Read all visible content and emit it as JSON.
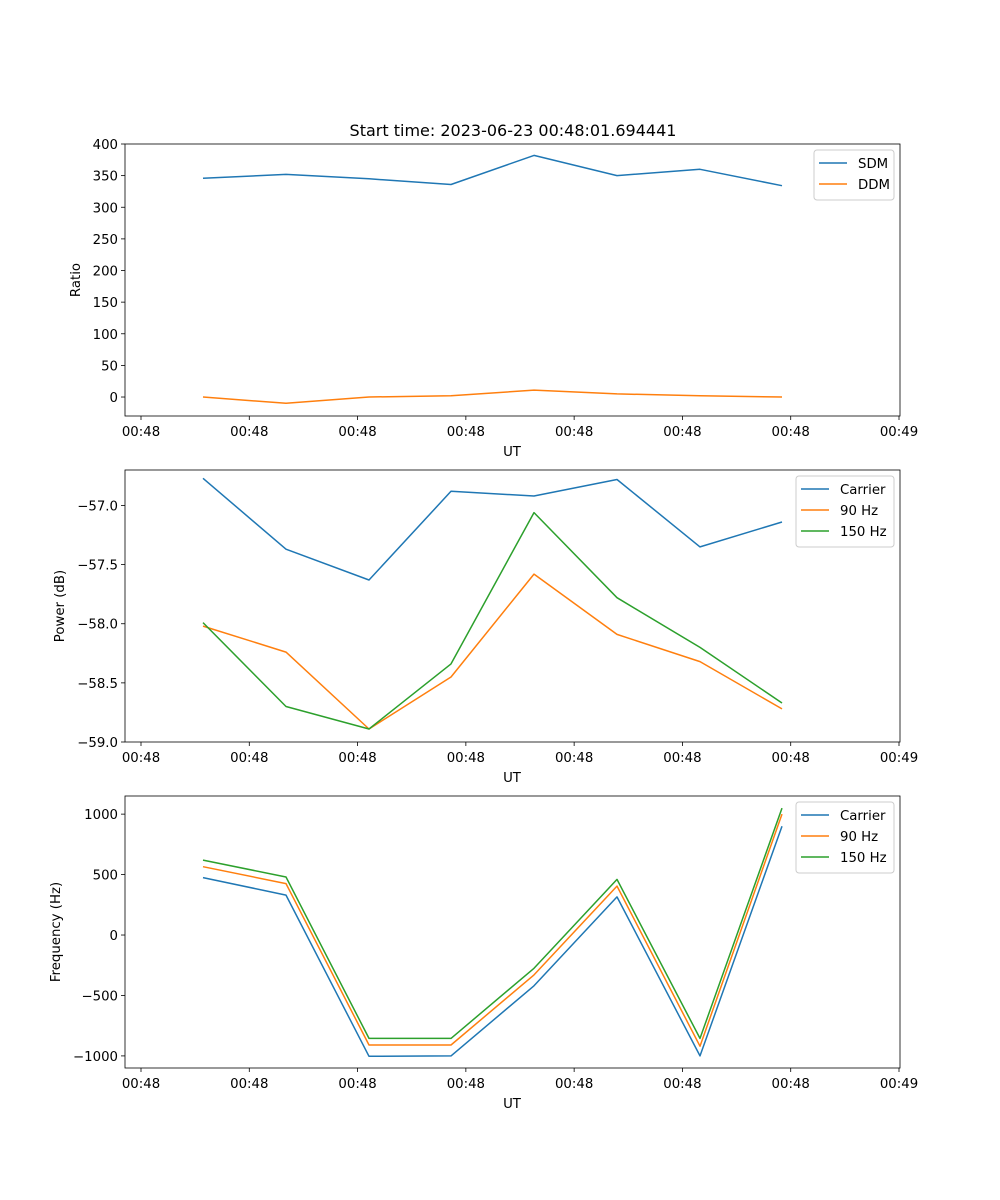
{
  "title": "Start time: 2023-06-23 00:48:01.694441",
  "chart_data": [
    {
      "type": "line",
      "xlabel": "UT",
      "ylabel": "Ratio",
      "x_ticks": [
        "00:48",
        "00:48",
        "00:48",
        "00:48",
        "00:48",
        "00:48",
        "00:48",
        "00:49"
      ],
      "y_ticks": [
        0,
        50,
        100,
        150,
        200,
        250,
        300,
        350,
        400
      ],
      "ylim": [
        -30,
        400
      ],
      "grid": false,
      "legend_position": "top-right",
      "series": [
        {
          "name": "SDM",
          "color": "#1f77b4",
          "values": [
            346,
            352,
            345,
            336,
            382,
            350,
            360,
            334
          ]
        },
        {
          "name": "DDM",
          "color": "#ff7f0e",
          "values": [
            0,
            -10,
            0,
            2,
            11,
            5,
            2,
            0
          ]
        }
      ]
    },
    {
      "type": "line",
      "xlabel": "UT",
      "ylabel": "Power (dB)",
      "x_ticks": [
        "00:48",
        "00:48",
        "00:48",
        "00:48",
        "00:48",
        "00:48",
        "00:48",
        "00:49"
      ],
      "y_ticks": [
        -59.0,
        -58.5,
        -58.0,
        -57.5,
        -57.0
      ],
      "y_tick_labels": [
        "−59.0",
        "−58.5",
        "−58.0",
        "−57.5",
        "−57.0"
      ],
      "ylim": [
        -59.0,
        -56.7
      ],
      "grid": false,
      "legend_position": "top-right",
      "series": [
        {
          "name": "Carrier",
          "color": "#1f77b4",
          "values": [
            -56.77,
            -57.37,
            -57.63,
            -56.88,
            -56.92,
            -56.78,
            -57.35,
            -57.14
          ]
        },
        {
          "name": "90 Hz",
          "color": "#ff7f0e",
          "values": [
            -58.02,
            -58.24,
            -58.89,
            -58.45,
            -57.58,
            -58.09,
            -58.32,
            -58.72
          ]
        },
        {
          "name": "150 Hz",
          "color": "#2ca02c",
          "values": [
            -57.99,
            -58.7,
            -58.89,
            -58.34,
            -57.06,
            -57.78,
            -58.2,
            -58.67
          ]
        }
      ]
    },
    {
      "type": "line",
      "xlabel": "UT",
      "ylabel": "Frequency (Hz)",
      "x_ticks": [
        "00:48",
        "00:48",
        "00:48",
        "00:48",
        "00:48",
        "00:48",
        "00:48",
        "00:49"
      ],
      "y_ticks": [
        -1000,
        -500,
        0,
        500,
        1000
      ],
      "y_tick_labels": [
        "−1000",
        "−500",
        "0",
        "500",
        "1000"
      ],
      "ylim": [
        -1100,
        1150
      ],
      "grid": false,
      "legend_position": "top-right",
      "series": [
        {
          "name": "Carrier",
          "color": "#1f77b4",
          "values": [
            475,
            330,
            -1003,
            -1000,
            -420,
            315,
            -1000,
            900
          ]
        },
        {
          "name": "90 Hz",
          "color": "#ff7f0e",
          "values": [
            565,
            425,
            -910,
            -910,
            -330,
            405,
            -920,
            1000
          ]
        },
        {
          "name": "150 Hz",
          "color": "#2ca02c",
          "values": [
            620,
            480,
            -855,
            -855,
            -275,
            460,
            -855,
            1050
          ]
        }
      ]
    }
  ]
}
